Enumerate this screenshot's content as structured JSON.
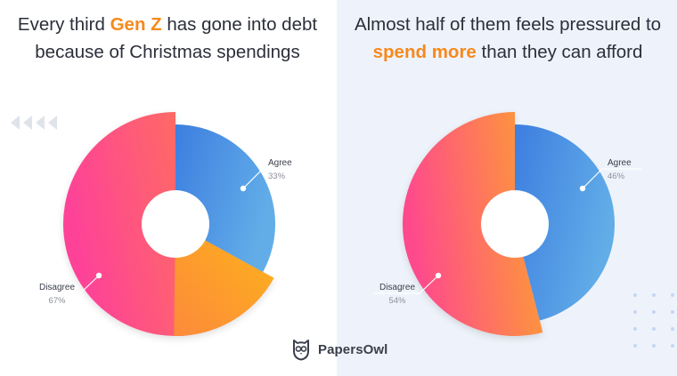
{
  "left_panel": {
    "title_parts": [
      "Every third ",
      "Gen Z",
      " has gone into debt because of Christmas spendings"
    ]
  },
  "right_panel": {
    "title_parts": [
      "Almost half of them feels pressured to ",
      "spend more",
      " than they can afford"
    ]
  },
  "brand": {
    "name": "PapersOwl",
    "icon": "owl-icon"
  },
  "colors": {
    "highlight": "#f7891c",
    "agree_gradient": [
      "#3d7ee0",
      "#62ade8"
    ],
    "disagree_gradient_left": [
      "#fe4397",
      "#fd8a3b"
    ],
    "accent_left": "#fdb41a",
    "disagree_gradient_right": [
      "#fe4a8c",
      "#fda32e"
    ]
  },
  "chart_data": [
    {
      "type": "pie",
      "title": "Every third Gen Z has gone into debt because of Christmas spendings",
      "categories": [
        "Agree",
        "Disagree"
      ],
      "values": [
        33,
        67
      ],
      "labels": [
        "33%",
        "67%"
      ]
    },
    {
      "type": "pie",
      "title": "Almost half of them feels pressured to spend more than they can afford",
      "categories": [
        "Agree",
        "Disagree"
      ],
      "values": [
        46,
        54
      ],
      "labels": [
        "46%",
        "54%"
      ]
    }
  ]
}
